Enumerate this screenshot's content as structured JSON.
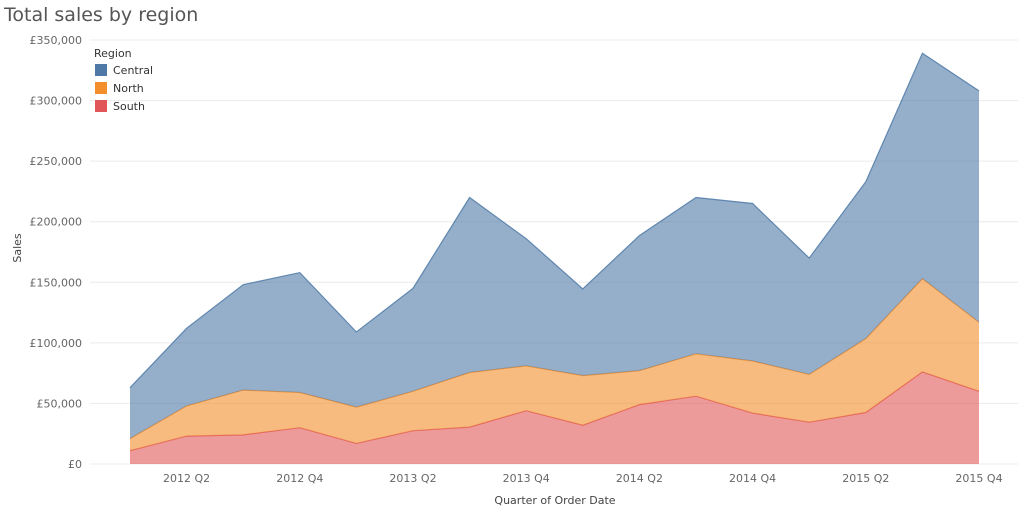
{
  "chart_data": {
    "type": "area",
    "title": "Total sales by region",
    "xlabel": "Quarter of Order Date",
    "ylabel": "Sales",
    "stacked": true,
    "ylim": [
      0,
      350000
    ],
    "grid": true,
    "legend": {
      "title": "Region",
      "placement": "top-left"
    },
    "y_ticks": [
      "£0",
      "£50,000",
      "£100,000",
      "£150,000",
      "£200,000",
      "£250,000",
      "£300,000",
      "£350,000"
    ],
    "y_tick_values": [
      0,
      50000,
      100000,
      150000,
      200000,
      250000,
      300000,
      350000
    ],
    "x": [
      "2012 Q1",
      "2012 Q2",
      "2012 Q3",
      "2012 Q4",
      "2013 Q1",
      "2013 Q2",
      "2013 Q3",
      "2013 Q4",
      "2014 Q1",
      "2014 Q2",
      "2014 Q3",
      "2014 Q4",
      "2015 Q1",
      "2015 Q2",
      "2015 Q3",
      "2015 Q4"
    ],
    "x_tick_labels": [
      {
        "index": 1,
        "label": "2012 Q2"
      },
      {
        "index": 3,
        "label": "2012 Q4"
      },
      {
        "index": 5,
        "label": "2013 Q2"
      },
      {
        "index": 7,
        "label": "2013 Q4"
      },
      {
        "index": 9,
        "label": "2014 Q2"
      },
      {
        "index": 11,
        "label": "2014 Q4"
      },
      {
        "index": 13,
        "label": "2015 Q2"
      },
      {
        "index": 15,
        "label": "2015 Q4"
      }
    ],
    "series": [
      {
        "name": "South",
        "color": "#e15759",
        "values": [
          11000,
          23000,
          24000,
          30000,
          17000,
          27500,
          30500,
          44000,
          32000,
          49000,
          56000,
          42000,
          34500,
          42500,
          76000,
          60000
        ]
      },
      {
        "name": "North",
        "color": "#f28e2b",
        "values": [
          10000,
          25000,
          37000,
          29000,
          30000,
          32500,
          45000,
          37000,
          41000,
          28000,
          35000,
          43000,
          39500,
          61000,
          77000,
          57000
        ]
      },
      {
        "name": "Central",
        "color": "#4e79a7",
        "values": [
          42000,
          64000,
          87000,
          99000,
          62000,
          85000,
          144500,
          105000,
          71500,
          111500,
          129000,
          130000,
          96000,
          129500,
          186000,
          191000
        ]
      }
    ],
    "legend_order": [
      "Central",
      "North",
      "South"
    ]
  }
}
